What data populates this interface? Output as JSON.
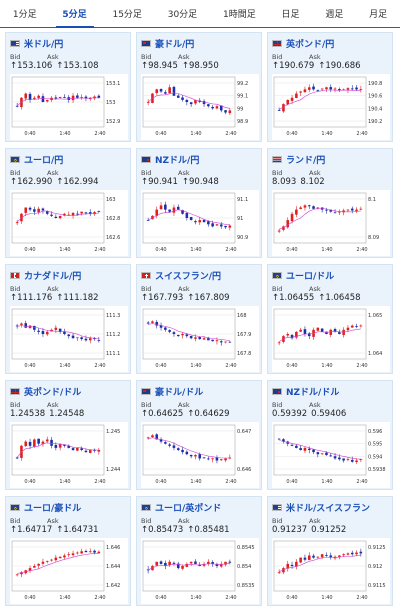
{
  "tabs": [
    {
      "label": "1分足",
      "active": false
    },
    {
      "label": "5分足",
      "active": true
    },
    {
      "label": "15分足",
      "active": false
    },
    {
      "label": "30分足",
      "active": false
    },
    {
      "label": "1時間足",
      "active": false
    },
    {
      "label": "日足",
      "active": false
    },
    {
      "label": "週足",
      "active": false
    },
    {
      "label": "月足",
      "active": false
    }
  ],
  "labels": {
    "bid": "Bid",
    "ask": "Ask"
  },
  "cards": [
    {
      "name": "米ドル/円",
      "flag": "us-flag",
      "bid": "↑153.106",
      "ask": "↑153.108",
      "y_ticks": [
        "153.1",
        "153",
        "152.9"
      ],
      "x_ticks": [
        "0:40",
        "1:40",
        "2:40"
      ]
    },
    {
      "name": "豪ドル/円",
      "flag": "au-flag",
      "bid": "↑98.945",
      "ask": "↑98.950",
      "y_ticks": [
        "99.2",
        "99.1",
        "99",
        "98.9"
      ],
      "x_ticks": [
        "0:40",
        "1:40",
        "2:40"
      ]
    },
    {
      "name": "英ポンド/円",
      "flag": "uk-flag",
      "bid": "↑190.679",
      "ask": "↑190.686",
      "y_ticks": [
        "190.8",
        "190.6",
        "190.4",
        "190.2"
      ],
      "x_ticks": [
        "0:40",
        "1:40",
        "2:40"
      ]
    },
    {
      "name": "ユーロ/円",
      "flag": "eu-flag",
      "bid": "↑162.990",
      "ask": "↑162.994",
      "y_ticks": [
        "163",
        "162.8",
        "162.6"
      ],
      "x_ticks": [
        "0:40",
        "1:40",
        "2:40"
      ]
    },
    {
      "name": "NZドル/円",
      "flag": "nz-flag",
      "bid": "↑90.941",
      "ask": "↑90.948",
      "y_ticks": [
        "91.1",
        "91",
        "90.9"
      ],
      "x_ticks": [
        "0:40",
        "1:40",
        "2:40"
      ]
    },
    {
      "name": "ランド/円",
      "flag": "za-flag",
      "bid": "8.093",
      "ask": "8.102",
      "y_ticks": [
        "8.1",
        "8.09"
      ],
      "x_ticks": [
        "0:40",
        "1:40",
        "2:40"
      ]
    },
    {
      "name": "カナダドル/円",
      "flag": "ca-flag",
      "bid": "↑111.176",
      "ask": "↑111.182",
      "y_ticks": [
        "111.3",
        "111.2",
        "111.1"
      ],
      "x_ticks": [
        "0:40",
        "1:40",
        "2:40"
      ]
    },
    {
      "name": "スイスフラン/円",
      "flag": "ch-flag",
      "bid": "↑167.793",
      "ask": "↑167.809",
      "y_ticks": [
        "168",
        "167.9",
        "167.8"
      ],
      "x_ticks": [
        "0:40",
        "1:40",
        "2:40"
      ]
    },
    {
      "name": "ユーロ/ドル",
      "flag": "eu-flag",
      "bid": "↑1.06455",
      "ask": "↑1.06458",
      "y_ticks": [
        "1.065",
        "1.064"
      ],
      "x_ticks": [
        "0:40",
        "1:40",
        "2:40"
      ]
    },
    {
      "name": "英ポンド/ドル",
      "flag": "uk-flag",
      "bid": "1.24538",
      "ask": "1.24548",
      "y_ticks": [
        "1.245",
        "1.244"
      ],
      "x_ticks": [
        "0:40",
        "1:40",
        "2:40"
      ]
    },
    {
      "name": "豪ドル/ドル",
      "flag": "au-flag",
      "bid": "↑0.64625",
      "ask": "↑0.64629",
      "y_ticks": [
        "0.647",
        "0.646"
      ],
      "x_ticks": [
        "0:40",
        "1:40",
        "2:40"
      ]
    },
    {
      "name": "NZドル/ドル",
      "flag": "nz-flag",
      "bid": "0.59392",
      "ask": "0.59406",
      "y_ticks": [
        "0.596",
        "0.595",
        "0.594",
        "0.5938"
      ],
      "x_ticks": [
        "0:40",
        "1:40",
        "2:40"
      ]
    },
    {
      "name": "ユーロ/豪ドル",
      "flag": "eu-flag",
      "bid": "↑1.64717",
      "ask": "↑1.64731",
      "y_ticks": [
        "1.646",
        "1.644",
        "1.642"
      ],
      "x_ticks": [
        "0:40",
        "1:40",
        "2:40"
      ]
    },
    {
      "name": "ユーロ/英ポンド",
      "flag": "eu-flag",
      "bid": "↑0.85473",
      "ask": "↑0.85481",
      "y_ticks": [
        "0.8545",
        "0.854",
        "0.8535"
      ],
      "x_ticks": [
        "0:40",
        "1:40",
        "2:40"
      ]
    },
    {
      "name": "米ドル/スイスフラン",
      "flag": "us-flag",
      "bid": "0.91237",
      "ask": "0.91252",
      "y_ticks": [
        "0.9125",
        "0.912",
        "0.9115"
      ],
      "x_ticks": [
        "0:40",
        "1:40",
        "2:40"
      ]
    }
  ],
  "colors": {
    "up": "#e02020",
    "down": "#1a2fa8",
    "ma": "#d040d0",
    "accent": "#1a4fb8"
  }
}
